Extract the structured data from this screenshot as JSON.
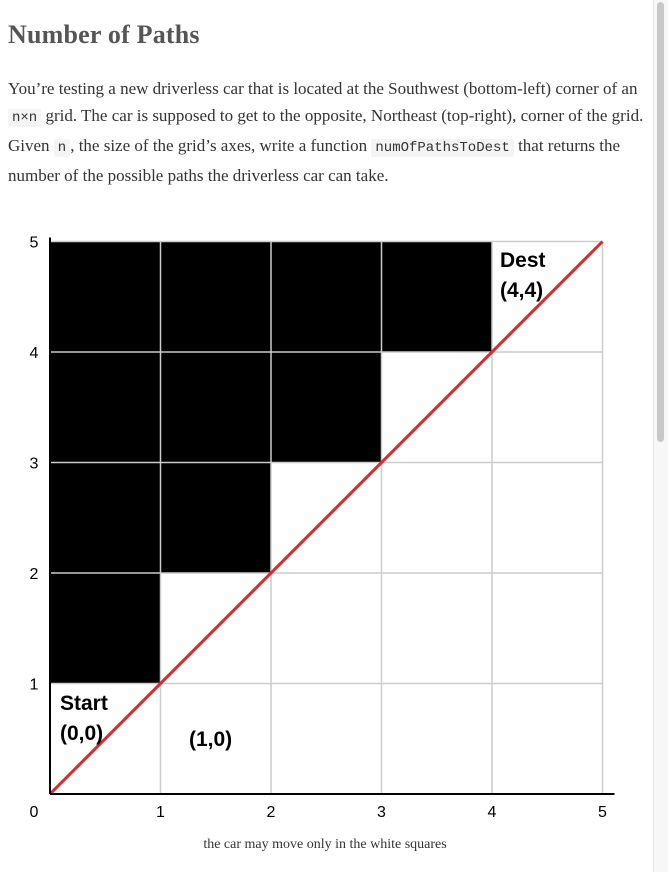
{
  "page": {
    "title": "Number of Paths",
    "intro": {
      "t1": "You’re testing a new driverless car that is located at the Southwest (bottom-left) corner of an ",
      "code1": "n×n",
      "t2": " grid. The car is supposed to get to the opposite, Northeast (top-right), corner of the grid. Given ",
      "code2": "n",
      "t3": ", the size of the grid’s axes, write a function ",
      "code3": "numOfPathsToDest",
      "t4": " that returns the number of the possible paths the driverless car can take."
    }
  },
  "figure": {
    "caption": "the car may move only in the white squares",
    "x_ticks": [
      "0",
      "1",
      "2",
      "3",
      "4",
      "5"
    ],
    "y_ticks": [
      "1",
      "2",
      "3",
      "4",
      "5"
    ],
    "start_label": "Start",
    "start_coord": "(0,0)",
    "next_coord": "(1,0)",
    "dest_label": "Dest",
    "dest_coord": "(4,4)",
    "grid_size": 5,
    "blocked_squares": [
      [
        0,
        1
      ],
      [
        0,
        2
      ],
      [
        0,
        3
      ],
      [
        0,
        4
      ],
      [
        1,
        2
      ],
      [
        1,
        3
      ],
      [
        1,
        4
      ],
      [
        2,
        3
      ],
      [
        2,
        4
      ],
      [
        3,
        4
      ]
    ],
    "diagonal": {
      "from": [
        0,
        0
      ],
      "to": [
        5,
        5
      ]
    },
    "colors": {
      "blocked": "#000000",
      "gridline": "#cccccc",
      "axis": "#000000",
      "diagonal": "#e3262b"
    }
  }
}
